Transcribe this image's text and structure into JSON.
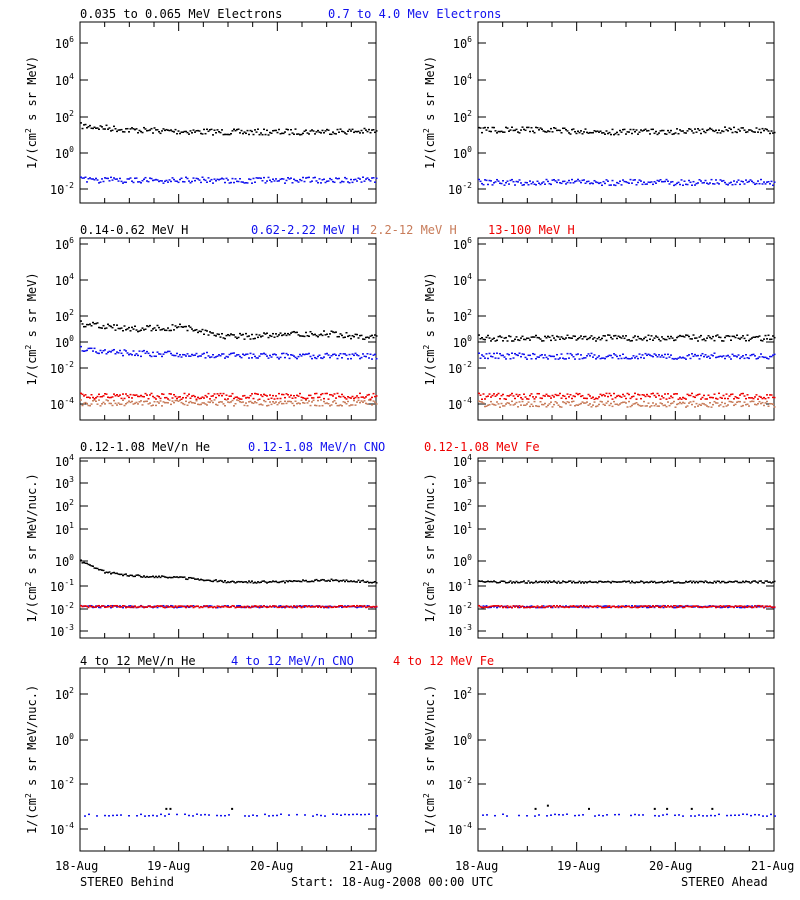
{
  "colors": {
    "black": "#000000",
    "blue": "#1010ee",
    "red": "#ee0000",
    "salmon": "#c87c5a",
    "magenta": "#d020a0"
  },
  "footer": {
    "left": "STEREO Behind",
    "center": "Start: 18-Aug-2008 00:00 UTC",
    "right": "STEREO Ahead"
  },
  "panels": [
    {
      "id": "electrons",
      "legend": [
        {
          "text": "0.035 to 0.065 MeV Electrons",
          "color": "#000000"
        },
        {
          "text": "0.7 to 4.0 Mev Electrons",
          "color": "#1010ee"
        }
      ],
      "ylabel": "1/(cm2 s sr MeV)",
      "ylabel_parts": [
        "1/(cm",
        "2",
        " s sr MeV)"
      ],
      "yticks": [
        {
          "base": "10",
          "exp": "6"
        },
        {
          "base": "10",
          "exp": "4"
        },
        {
          "base": "10",
          "exp": "2"
        },
        {
          "base": "10",
          "exp": "0"
        },
        {
          "base": "10",
          "exp": "-2"
        }
      ]
    },
    {
      "id": "protons",
      "legend": [
        {
          "text": "0.14-0.62 MeV H",
          "color": "#000000"
        },
        {
          "text": "0.62-2.22 MeV H",
          "color": "#1010ee"
        },
        {
          "text": "2.2-12 MeV H",
          "color": "#c87c5a"
        },
        {
          "text": "13-100 MeV H",
          "color": "#ee0000"
        }
      ],
      "ylabel": "1/(cm2 s sr MeV)",
      "ylabel_parts": [
        "1/(cm",
        "2",
        " s sr MeV)"
      ],
      "yticks": [
        {
          "base": "10",
          "exp": "6"
        },
        {
          "base": "10",
          "exp": "4"
        },
        {
          "base": "10",
          "exp": "2"
        },
        {
          "base": "10",
          "exp": "0"
        },
        {
          "base": "10",
          "exp": "-2"
        },
        {
          "base": "10",
          "exp": "-4"
        }
      ]
    },
    {
      "id": "heavy-low",
      "legend": [
        {
          "text": "0.12-1.08 MeV/n He",
          "color": "#000000"
        },
        {
          "text": "0.12-1.08 MeV/n CNO",
          "color": "#1010ee"
        },
        {
          "text": "0.12-1.08 MeV Fe",
          "color": "#ee0000"
        }
      ],
      "ylabel": "1/(cm2 s sr MeV/nuc.)",
      "ylabel_parts": [
        "1/(cm",
        "2",
        " s sr MeV/nuc.)"
      ],
      "yticks": [
        {
          "base": "10",
          "exp": "4"
        },
        {
          "base": "10",
          "exp": "3"
        },
        {
          "base": "10",
          "exp": "2"
        },
        {
          "base": "10",
          "exp": "1"
        },
        {
          "base": "10",
          "exp": "0"
        },
        {
          "base": "10",
          "exp": "-1"
        },
        {
          "base": "10",
          "exp": "-2"
        },
        {
          "base": "10",
          "exp": "-3"
        }
      ]
    },
    {
      "id": "heavy-high",
      "legend": [
        {
          "text": "4 to 12 MeV/n He",
          "color": "#000000"
        },
        {
          "text": "4 to 12 MeV/n CNO",
          "color": "#1010ee"
        },
        {
          "text": "4 to 12 MeV Fe",
          "color": "#ee0000"
        }
      ],
      "ylabel": "1/(cm2 s sr MeV/nuc.)",
      "ylabel_parts": [
        "1/(cm",
        "2",
        " s sr MeV/nuc.)"
      ],
      "yticks": [
        {
          "base": "10",
          "exp": "2"
        },
        {
          "base": "10",
          "exp": "0"
        },
        {
          "base": "10",
          "exp": "-2"
        },
        {
          "base": "10",
          "exp": "-4"
        }
      ]
    }
  ],
  "chart_data": [
    {
      "type": "scatter",
      "panel": "electrons",
      "spacecraft": "STEREO Behind",
      "xlim": [
        "2008-08-18",
        "2008-08-21"
      ],
      "ylim": [
        0.001,
        10000000
      ],
      "yscale": "log",
      "grid": false,
      "series": [
        {
          "name": "0.035 to 0.065 MeV Electrons",
          "color": "#000000",
          "x": [
            "2008-08-18",
            "2008-08-18T12:00",
            "2008-08-19",
            "2008-08-19T12:00",
            "2008-08-20",
            "2008-08-20T12:00",
            "2008-08-21"
          ],
          "y": [
            20,
            12,
            10,
            9,
            9,
            10,
            10
          ]
        },
        {
          "name": "0.7 to 4.0 Mev Electrons",
          "color": "#1010ee",
          "x": [
            "2008-08-18",
            "2008-08-18T12:00",
            "2008-08-19",
            "2008-08-19T12:00",
            "2008-08-20",
            "2008-08-20T12:00",
            "2008-08-21"
          ],
          "y": [
            0.02,
            0.02,
            0.02,
            0.02,
            0.02,
            0.02,
            0.02
          ]
        }
      ]
    },
    {
      "type": "scatter",
      "panel": "electrons",
      "spacecraft": "STEREO Ahead",
      "xlim": [
        "2008-08-18",
        "2008-08-21"
      ],
      "ylim": [
        0.001,
        10000000
      ],
      "yscale": "log",
      "grid": false,
      "series": [
        {
          "name": "0.035 to 0.065 MeV Electrons",
          "color": "#000000",
          "x": [
            "2008-08-18",
            "2008-08-18T12:00",
            "2008-08-19",
            "2008-08-19T12:00",
            "2008-08-20",
            "2008-08-20T12:00",
            "2008-08-21"
          ],
          "y": [
            11,
            12,
            10,
            9,
            10,
            12,
            10
          ]
        },
        {
          "name": "0.7 to 4.0 Mev Electrons",
          "color": "#1010ee",
          "x": [
            "2008-08-18",
            "2008-08-18T12:00",
            "2008-08-19",
            "2008-08-19T12:00",
            "2008-08-20",
            "2008-08-20T12:00",
            "2008-08-21"
          ],
          "y": [
            0.015,
            0.015,
            0.015,
            0.015,
            0.015,
            0.015,
            0.015
          ]
        }
      ]
    },
    {
      "type": "scatter",
      "panel": "protons",
      "spacecraft": "STEREO Behind",
      "xlim": [
        "2008-08-18",
        "2008-08-21"
      ],
      "ylim": [
        1e-05,
        1000000
      ],
      "yscale": "log",
      "grid": false,
      "series": [
        {
          "name": "0.14-0.62 MeV H",
          "color": "#000000",
          "x": [
            "2008-08-18",
            "2008-08-18T06:00",
            "2008-08-18T12:00",
            "2008-08-19",
            "2008-08-19T06:00",
            "2008-08-19T12:00",
            "2008-08-20",
            "2008-08-20T06:00",
            "2008-08-20T12:00",
            "2008-08-21"
          ],
          "y": [
            7,
            5,
            3.5,
            4.5,
            2.5,
            1.2,
            1.4,
            1.8,
            1.8,
            1
          ]
        },
        {
          "name": "0.62-2.22 MeV H",
          "color": "#1010ee",
          "x": [
            "2008-08-18",
            "2008-08-18T12:00",
            "2008-08-19",
            "2008-08-19T12:00",
            "2008-08-20",
            "2008-08-20T12:00",
            "2008-08-21"
          ],
          "y": [
            0.2,
            0.12,
            0.1,
            0.09,
            0.08,
            0.08,
            0.08
          ]
        },
        {
          "name": "2.2-12 MeV H",
          "color": "#c87c5a",
          "x": [
            "2008-08-18",
            "2008-08-19",
            "2008-08-20",
            "2008-08-21"
          ],
          "y": [
            0.00012,
            0.00012,
            0.00012,
            0.00012
          ]
        },
        {
          "name": "13-100 MeV H",
          "color": "#ee0000",
          "x": [
            "2008-08-18",
            "2008-08-19",
            "2008-08-20",
            "2008-08-21"
          ],
          "y": [
            0.0003,
            0.0003,
            0.0003,
            0.0003
          ]
        }
      ]
    },
    {
      "type": "scatter",
      "panel": "protons",
      "spacecraft": "STEREO Ahead",
      "xlim": [
        "2008-08-18",
        "2008-08-21"
      ],
      "ylim": [
        1e-05,
        1000000
      ],
      "yscale": "log",
      "grid": false,
      "series": [
        {
          "name": "0.14-0.62 MeV H",
          "color": "#000000",
          "x": [
            "2008-08-18",
            "2008-08-19",
            "2008-08-20",
            "2008-08-21"
          ],
          "y": [
            1,
            1,
            1,
            1
          ]
        },
        {
          "name": "0.62-2.22 MeV H",
          "color": "#1010ee",
          "x": [
            "2008-08-18",
            "2008-08-19",
            "2008-08-20",
            "2008-08-21"
          ],
          "y": [
            0.08,
            0.08,
            0.08,
            0.08
          ]
        },
        {
          "name": "2.2-12 MeV H",
          "color": "#c87c5a",
          "x": [
            "2008-08-18",
            "2008-08-19",
            "2008-08-20",
            "2008-08-21"
          ],
          "y": [
            0.0001,
            0.0001,
            0.0001,
            0.0001
          ]
        },
        {
          "name": "13-100 MeV H",
          "color": "#ee0000",
          "x": [
            "2008-08-18",
            "2008-08-19",
            "2008-08-20",
            "2008-08-21"
          ],
          "y": [
            0.0003,
            0.0003,
            0.0003,
            0.0003
          ]
        }
      ]
    },
    {
      "type": "scatter",
      "panel": "heavy-low",
      "spacecraft": "STEREO Behind",
      "xlim": [
        "2008-08-18",
        "2008-08-21"
      ],
      "ylim": [
        0.0005,
        10000
      ],
      "yscale": "log",
      "grid": false,
      "series": [
        {
          "name": "0.12-1.08 MeV/n He",
          "color": "#000000",
          "x": [
            "2008-08-18",
            "2008-08-18T06:00",
            "2008-08-18T12:00",
            "2008-08-19",
            "2008-08-19T12:00",
            "2008-08-20",
            "2008-08-20T12:00",
            "2008-08-21"
          ],
          "y": [
            0.7,
            0.25,
            0.18,
            0.15,
            0.1,
            0.1,
            0.12,
            0.1
          ]
        },
        {
          "name": "0.12-1.08 MeV/n CNO",
          "color": "#1010ee",
          "x": [
            "2008-08-18",
            "2008-08-19",
            "2008-08-20",
            "2008-08-21"
          ],
          "y": [
            0.01,
            0.01,
            0.01,
            0.01
          ]
        },
        {
          "name": "0.12-1.08 MeV Fe",
          "color": "#ee0000",
          "x": [
            "2008-08-18",
            "2008-08-19",
            "2008-08-20",
            "2008-08-21"
          ],
          "y": [
            0.01,
            0.01,
            0.01,
            0.01
          ]
        }
      ]
    },
    {
      "type": "scatter",
      "panel": "heavy-low",
      "spacecraft": "STEREO Ahead",
      "xlim": [
        "2008-08-18",
        "2008-08-21"
      ],
      "ylim": [
        0.0005,
        10000
      ],
      "yscale": "log",
      "grid": false,
      "series": [
        {
          "name": "0.12-1.08 MeV/n He",
          "color": "#000000",
          "x": [
            "2008-08-18",
            "2008-08-19",
            "2008-08-20",
            "2008-08-21"
          ],
          "y": [
            0.1,
            0.1,
            0.1,
            0.1
          ]
        },
        {
          "name": "0.12-1.08 MeV/n CNO",
          "color": "#1010ee",
          "x": [
            "2008-08-18",
            "2008-08-19",
            "2008-08-20",
            "2008-08-21"
          ],
          "y": [
            0.01,
            0.01,
            0.01,
            0.01
          ]
        },
        {
          "name": "0.12-1.08 MeV Fe",
          "color": "#ee0000",
          "x": [
            "2008-08-18",
            "2008-08-19",
            "2008-08-20",
            "2008-08-21"
          ],
          "y": [
            0.01,
            0.01,
            0.01,
            0.01
          ]
        }
      ]
    },
    {
      "type": "scatter",
      "panel": "heavy-high",
      "spacecraft": "STEREO Behind",
      "xlim": [
        "2008-08-18",
        "2008-08-21"
      ],
      "ylim": [
        1e-06,
        10000
      ],
      "yscale": "log",
      "grid": false,
      "series": [
        {
          "name": "4 to 12 MeV/n He",
          "color": "#000000",
          "x": [
            "2008-08-18T21:00",
            "2008-08-18T22:00",
            "2008-08-19T13:00"
          ],
          "y": [
            0.0002,
            0.0002,
            0.0002
          ]
        },
        {
          "name": "4 to 12 MeV/n CNO",
          "color": "#1010ee",
          "x": [
            "2008-08-18",
            "2008-08-19",
            "2008-08-20",
            "2008-08-21"
          ],
          "y": [
            0.0001,
            0.0001,
            0.0001,
            0.0001
          ]
        }
      ]
    },
    {
      "type": "scatter",
      "panel": "heavy-high",
      "spacecraft": "STEREO Ahead",
      "xlim": [
        "2008-08-18",
        "2008-08-21"
      ],
      "ylim": [
        1e-06,
        10000
      ],
      "yscale": "log",
      "grid": false,
      "series": [
        {
          "name": "4 to 12 MeV/n He",
          "color": "#000000",
          "x": [
            "2008-08-18T14:00",
            "2008-08-18T17:00",
            "2008-08-19T03:00",
            "2008-08-19T19:00",
            "2008-08-19T22:00",
            "2008-08-20T04:00",
            "2008-08-20T09:00"
          ],
          "y": [
            0.0002,
            0.0003,
            0.0002,
            0.0002,
            0.0002,
            0.0002,
            0.0002
          ]
        },
        {
          "name": "4 to 12 MeV/n CNO",
          "color": "#1010ee",
          "x": [
            "2008-08-18",
            "2008-08-19",
            "2008-08-20",
            "2008-08-21"
          ],
          "y": [
            0.0001,
            0.0001,
            0.0001,
            0.0001
          ]
        }
      ]
    }
  ],
  "xaxis": {
    "tick_labels": [
      "18-Aug",
      "19-Aug",
      "20-Aug",
      "21-Aug"
    ]
  }
}
